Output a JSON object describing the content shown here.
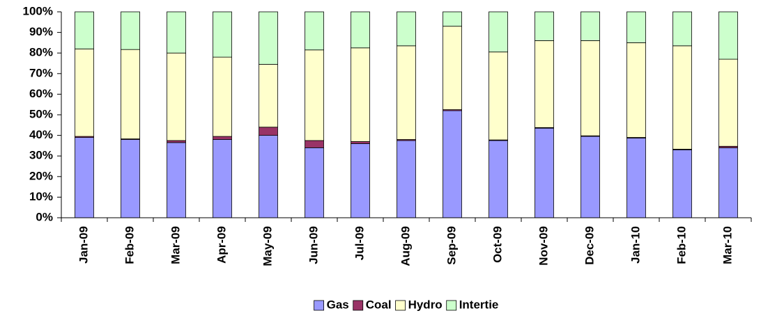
{
  "chart_data": {
    "type": "stacked_bar",
    "categories": [
      "Jan-09",
      "Feb-09",
      "Mar-09",
      "Apr-09",
      "May-09",
      "Jun-09",
      "Jul-09",
      "Aug-09",
      "Sep-09",
      "Oct-09",
      "Nov-09",
      "Dec-09",
      "Jan-10",
      "Feb-10",
      "Mar-10"
    ],
    "series": [
      {
        "name": "Gas",
        "color": "#9999ff",
        "values": [
          39,
          38,
          36.5,
          38,
          40,
          34,
          36,
          37.5,
          52,
          37.5,
          43.5,
          39.5,
          38.7,
          33,
          34
        ]
      },
      {
        "name": "Coal",
        "color": "#993366",
        "values": [
          0.5,
          0.3,
          1,
          1.5,
          4,
          3.5,
          1,
          0.5,
          0.5,
          0.3,
          0.3,
          0.3,
          0.3,
          0.3,
          0.7
        ]
      },
      {
        "name": "Hydro",
        "color": "#ffffcc",
        "values": [
          42.5,
          43.4,
          42.5,
          38.5,
          30.5,
          44,
          45.5,
          45.5,
          40.5,
          42.7,
          42.2,
          46.2,
          46,
          50.2,
          42.3
        ]
      },
      {
        "name": "Intertie",
        "color": "#ccffcc",
        "values": [
          18,
          18.3,
          20,
          22,
          25.5,
          18.5,
          17.5,
          16.5,
          7,
          19.5,
          14,
          14,
          15,
          16.5,
          23
        ]
      }
    ],
    "ylim": [
      0,
      100
    ],
    "yticks": [
      {
        "value": 0,
        "label": "0%"
      },
      {
        "value": 10,
        "label": "10%"
      },
      {
        "value": 20,
        "label": "20%"
      },
      {
        "value": 30,
        "label": "30%"
      },
      {
        "value": 40,
        "label": "40%"
      },
      {
        "value": 50,
        "label": "50%"
      },
      {
        "value": 60,
        "label": "60%"
      },
      {
        "value": 70,
        "label": "70%"
      },
      {
        "value": 80,
        "label": "80%"
      },
      {
        "value": 90,
        "label": "90%"
      },
      {
        "value": 100,
        "label": "100%"
      }
    ],
    "legend": "bottom"
  }
}
